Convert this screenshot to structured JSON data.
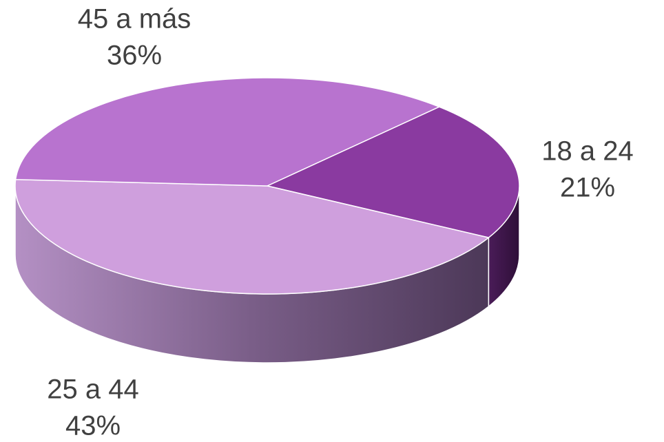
{
  "chart_data": {
    "type": "pie",
    "categories": [
      "18 a 24",
      "25 a 44",
      "45 a más"
    ],
    "values": [
      21,
      43,
      36
    ],
    "value_labels": [
      "21%",
      "43%",
      "36%"
    ],
    "colors": [
      "#8a3aa0",
      "#cf9fdd",
      "#b873cf"
    ]
  }
}
